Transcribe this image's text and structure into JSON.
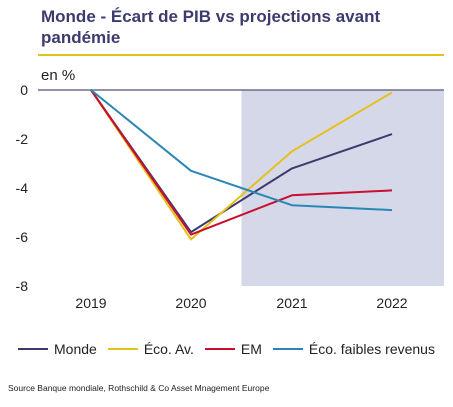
{
  "title": "Monde - Écart de PIB vs  projections avant pandémie",
  "unit_label": "en %",
  "source": "Source Banque mondiale, Rothschild & Co Asset Mnagement Europe",
  "colors": {
    "title": "#3d3b6e",
    "accent_rule": "#e5c01a",
    "forecast_shading": "#d5d8e8",
    "zero_line": "#6d6f8a"
  },
  "chart_data": {
    "type": "line",
    "title": "Monde - Écart de PIB vs  projections avant pandémie",
    "ylabel": "en %",
    "xlabel": "",
    "categories": [
      "2019",
      "2020",
      "2021",
      "2022"
    ],
    "ylim": [
      -8,
      0
    ],
    "yticks": [
      "0",
      "-2",
      "-4",
      "-6",
      "-8"
    ],
    "ytick_values": [
      0,
      -2,
      -4,
      -6,
      -8
    ],
    "shaded_region": "2021–2022 (forecast)",
    "legend_position": "bottom",
    "grid": false,
    "series": [
      {
        "name": "Monde",
        "color": "#3d3b6e",
        "values": [
          0,
          -5.8,
          -3.2,
          -1.8
        ]
      },
      {
        "name": "Éco. Av.",
        "color": "#e5c01a",
        "values": [
          0,
          -6.1,
          -2.5,
          -0.1
        ]
      },
      {
        "name": "EM",
        "color": "#c8102e",
        "values": [
          0,
          -5.9,
          -4.3,
          -4.1
        ]
      },
      {
        "name": "Éco. faibles revenus",
        "color": "#2a87b5",
        "values": [
          0,
          -3.3,
          -4.7,
          -4.9
        ]
      }
    ]
  }
}
